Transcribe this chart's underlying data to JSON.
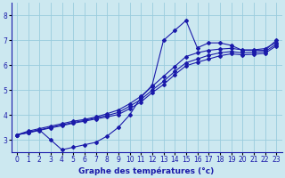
{
  "xlabel": "Graphe des températures (°c)",
  "bg_color": "#cce8f0",
  "line_color": "#1a1aaa",
  "grid_color": "#99ccdd",
  "x_ticks": [
    0,
    1,
    2,
    3,
    4,
    5,
    6,
    7,
    8,
    9,
    10,
    11,
    12,
    13,
    14,
    15,
    16,
    17,
    18,
    19,
    20,
    21,
    22,
    23
  ],
  "y_ticks": [
    3,
    4,
    5,
    6,
    7,
    8
  ],
  "xlim": [
    -0.5,
    23.5
  ],
  "ylim": [
    2.5,
    8.5
  ],
  "lines": [
    {
      "x": [
        0,
        1,
        2,
        3,
        4,
        5,
        6,
        7,
        8,
        9,
        10,
        11,
        12,
        13,
        14,
        15,
        16,
        17,
        18,
        19,
        20,
        21,
        22,
        23
      ],
      "y": [
        3.2,
        3.3,
        3.4,
        3.0,
        2.6,
        2.7,
        2.8,
        2.9,
        3.15,
        3.5,
        4.0,
        4.7,
        5.2,
        7.0,
        7.4,
        7.8,
        6.7,
        6.9,
        6.9,
        6.8,
        6.6,
        6.6,
        6.6,
        7.0
      ]
    },
    {
      "x": [
        0,
        1,
        2,
        3,
        4,
        5,
        6,
        7,
        8,
        9,
        10,
        11,
        12,
        13,
        14,
        15,
        16,
        17,
        18,
        19,
        20,
        21,
        22,
        23
      ],
      "y": [
        3.2,
        3.35,
        3.45,
        3.55,
        3.65,
        3.75,
        3.82,
        3.92,
        4.05,
        4.2,
        4.45,
        4.75,
        5.15,
        5.55,
        5.95,
        6.35,
        6.5,
        6.6,
        6.65,
        6.68,
        6.62,
        6.62,
        6.67,
        6.92
      ]
    },
    {
      "x": [
        0,
        1,
        2,
        3,
        4,
        5,
        6,
        7,
        8,
        9,
        10,
        11,
        12,
        13,
        14,
        15,
        16,
        17,
        18,
        19,
        20,
        21,
        22,
        23
      ],
      "y": [
        3.2,
        3.3,
        3.4,
        3.5,
        3.6,
        3.7,
        3.78,
        3.88,
        3.98,
        4.1,
        4.35,
        4.62,
        5.0,
        5.35,
        5.75,
        6.1,
        6.25,
        6.4,
        6.5,
        6.55,
        6.5,
        6.52,
        6.55,
        6.85
      ]
    },
    {
      "x": [
        0,
        1,
        2,
        3,
        4,
        5,
        6,
        7,
        8,
        9,
        10,
        11,
        12,
        13,
        14,
        15,
        16,
        17,
        18,
        19,
        20,
        21,
        22,
        23
      ],
      "y": [
        3.2,
        3.28,
        3.38,
        3.48,
        3.57,
        3.67,
        3.75,
        3.84,
        3.92,
        4.02,
        4.25,
        4.52,
        4.9,
        5.22,
        5.62,
        5.98,
        6.12,
        6.25,
        6.38,
        6.46,
        6.42,
        6.44,
        6.48,
        6.78
      ]
    }
  ],
  "tick_fontsize": 5.5,
  "xlabel_fontsize": 6.5
}
